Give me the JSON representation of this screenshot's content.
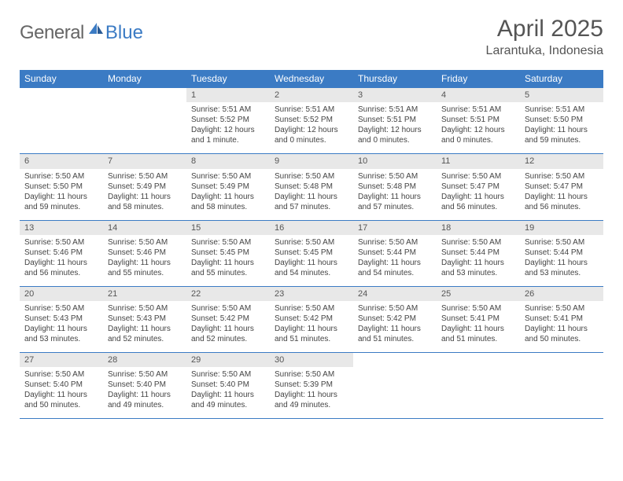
{
  "logo": {
    "general": "General",
    "blue": "Blue"
  },
  "title": "April 2025",
  "location": "Larantuka, Indonesia",
  "header_bg": "#3b7bc4",
  "days": [
    "Sunday",
    "Monday",
    "Tuesday",
    "Wednesday",
    "Thursday",
    "Friday",
    "Saturday"
  ],
  "weeks": [
    {
      "nums": [
        "",
        "",
        "1",
        "2",
        "3",
        "4",
        "5"
      ],
      "cells": [
        {},
        {},
        {
          "sr": "Sunrise: 5:51 AM",
          "ss": "Sunset: 5:52 PM",
          "dl": "Daylight: 12 hours and 1 minute."
        },
        {
          "sr": "Sunrise: 5:51 AM",
          "ss": "Sunset: 5:52 PM",
          "dl": "Daylight: 12 hours and 0 minutes."
        },
        {
          "sr": "Sunrise: 5:51 AM",
          "ss": "Sunset: 5:51 PM",
          "dl": "Daylight: 12 hours and 0 minutes."
        },
        {
          "sr": "Sunrise: 5:51 AM",
          "ss": "Sunset: 5:51 PM",
          "dl": "Daylight: 12 hours and 0 minutes."
        },
        {
          "sr": "Sunrise: 5:51 AM",
          "ss": "Sunset: 5:50 PM",
          "dl": "Daylight: 11 hours and 59 minutes."
        }
      ]
    },
    {
      "nums": [
        "6",
        "7",
        "8",
        "9",
        "10",
        "11",
        "12"
      ],
      "cells": [
        {
          "sr": "Sunrise: 5:50 AM",
          "ss": "Sunset: 5:50 PM",
          "dl": "Daylight: 11 hours and 59 minutes."
        },
        {
          "sr": "Sunrise: 5:50 AM",
          "ss": "Sunset: 5:49 PM",
          "dl": "Daylight: 11 hours and 58 minutes."
        },
        {
          "sr": "Sunrise: 5:50 AM",
          "ss": "Sunset: 5:49 PM",
          "dl": "Daylight: 11 hours and 58 minutes."
        },
        {
          "sr": "Sunrise: 5:50 AM",
          "ss": "Sunset: 5:48 PM",
          "dl": "Daylight: 11 hours and 57 minutes."
        },
        {
          "sr": "Sunrise: 5:50 AM",
          "ss": "Sunset: 5:48 PM",
          "dl": "Daylight: 11 hours and 57 minutes."
        },
        {
          "sr": "Sunrise: 5:50 AM",
          "ss": "Sunset: 5:47 PM",
          "dl": "Daylight: 11 hours and 56 minutes."
        },
        {
          "sr": "Sunrise: 5:50 AM",
          "ss": "Sunset: 5:47 PM",
          "dl": "Daylight: 11 hours and 56 minutes."
        }
      ]
    },
    {
      "nums": [
        "13",
        "14",
        "15",
        "16",
        "17",
        "18",
        "19"
      ],
      "cells": [
        {
          "sr": "Sunrise: 5:50 AM",
          "ss": "Sunset: 5:46 PM",
          "dl": "Daylight: 11 hours and 56 minutes."
        },
        {
          "sr": "Sunrise: 5:50 AM",
          "ss": "Sunset: 5:46 PM",
          "dl": "Daylight: 11 hours and 55 minutes."
        },
        {
          "sr": "Sunrise: 5:50 AM",
          "ss": "Sunset: 5:45 PM",
          "dl": "Daylight: 11 hours and 55 minutes."
        },
        {
          "sr": "Sunrise: 5:50 AM",
          "ss": "Sunset: 5:45 PM",
          "dl": "Daylight: 11 hours and 54 minutes."
        },
        {
          "sr": "Sunrise: 5:50 AM",
          "ss": "Sunset: 5:44 PM",
          "dl": "Daylight: 11 hours and 54 minutes."
        },
        {
          "sr": "Sunrise: 5:50 AM",
          "ss": "Sunset: 5:44 PM",
          "dl": "Daylight: 11 hours and 53 minutes."
        },
        {
          "sr": "Sunrise: 5:50 AM",
          "ss": "Sunset: 5:44 PM",
          "dl": "Daylight: 11 hours and 53 minutes."
        }
      ]
    },
    {
      "nums": [
        "20",
        "21",
        "22",
        "23",
        "24",
        "25",
        "26"
      ],
      "cells": [
        {
          "sr": "Sunrise: 5:50 AM",
          "ss": "Sunset: 5:43 PM",
          "dl": "Daylight: 11 hours and 53 minutes."
        },
        {
          "sr": "Sunrise: 5:50 AM",
          "ss": "Sunset: 5:43 PM",
          "dl": "Daylight: 11 hours and 52 minutes."
        },
        {
          "sr": "Sunrise: 5:50 AM",
          "ss": "Sunset: 5:42 PM",
          "dl": "Daylight: 11 hours and 52 minutes."
        },
        {
          "sr": "Sunrise: 5:50 AM",
          "ss": "Sunset: 5:42 PM",
          "dl": "Daylight: 11 hours and 51 minutes."
        },
        {
          "sr": "Sunrise: 5:50 AM",
          "ss": "Sunset: 5:42 PM",
          "dl": "Daylight: 11 hours and 51 minutes."
        },
        {
          "sr": "Sunrise: 5:50 AM",
          "ss": "Sunset: 5:41 PM",
          "dl": "Daylight: 11 hours and 51 minutes."
        },
        {
          "sr": "Sunrise: 5:50 AM",
          "ss": "Sunset: 5:41 PM",
          "dl": "Daylight: 11 hours and 50 minutes."
        }
      ]
    },
    {
      "nums": [
        "27",
        "28",
        "29",
        "30",
        "",
        "",
        ""
      ],
      "cells": [
        {
          "sr": "Sunrise: 5:50 AM",
          "ss": "Sunset: 5:40 PM",
          "dl": "Daylight: 11 hours and 50 minutes."
        },
        {
          "sr": "Sunrise: 5:50 AM",
          "ss": "Sunset: 5:40 PM",
          "dl": "Daylight: 11 hours and 49 minutes."
        },
        {
          "sr": "Sunrise: 5:50 AM",
          "ss": "Sunset: 5:40 PM",
          "dl": "Daylight: 11 hours and 49 minutes."
        },
        {
          "sr": "Sunrise: 5:50 AM",
          "ss": "Sunset: 5:39 PM",
          "dl": "Daylight: 11 hours and 49 minutes."
        },
        {},
        {},
        {}
      ]
    }
  ]
}
